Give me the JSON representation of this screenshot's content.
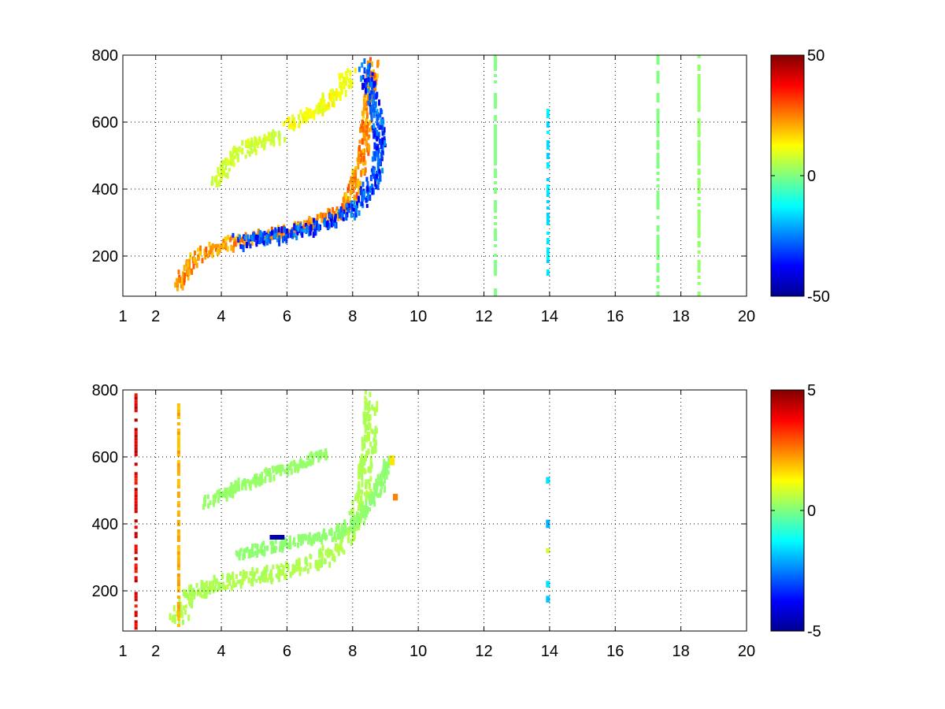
{
  "chart_data": [
    {
      "type": "heatmap",
      "title": "",
      "xlabel": "",
      "ylabel": "",
      "xlim": [
        1,
        20
      ],
      "ylim": [
        80,
        800
      ],
      "x_ticks": [
        1,
        2,
        4,
        6,
        8,
        10,
        12,
        14,
        16,
        18,
        20
      ],
      "x_tick_labels": [
        "1",
        "2",
        "4",
        "6",
        "8",
        "10",
        "12",
        "14",
        "16",
        "18",
        "20"
      ],
      "y_ticks": [
        200,
        400,
        600,
        800
      ],
      "y_tick_labels": [
        "200",
        "400",
        "600",
        "800"
      ],
      "grid": true,
      "colormap": "jet",
      "clim": [
        -50,
        50
      ],
      "colorbar_ticks": [
        50,
        0,
        -50
      ],
      "colorbar_tick_labels": [
        "50",
        "0",
        "-50"
      ],
      "features": [
        {
          "kind": "band",
          "value": 30,
          "spread": 7,
          "points": [
            [
              2.6,
              120
            ],
            [
              3.0,
              180
            ],
            [
              3.3,
              210
            ],
            [
              4.0,
              240
            ],
            [
              5.0,
              265
            ],
            [
              6.0,
              285
            ],
            [
              7.0,
              310
            ],
            [
              7.6,
              340
            ],
            [
              8.0,
              400
            ],
            [
              8.3,
              520
            ],
            [
              8.5,
              700
            ],
            [
              8.6,
              790
            ]
          ]
        },
        {
          "kind": "band",
          "value": -40,
          "spread": 8,
          "points": [
            [
              4.5,
              250
            ],
            [
              5.5,
              265
            ],
            [
              6.5,
              285
            ],
            [
              7.5,
              320
            ],
            [
              8.2,
              360
            ],
            [
              8.7,
              450
            ],
            [
              8.8,
              560
            ],
            [
              8.6,
              680
            ],
            [
              8.3,
              780
            ]
          ]
        },
        {
          "kind": "band",
          "value": 10,
          "spread": 8,
          "points": [
            [
              3.8,
              420
            ],
            [
              4.3,
              510
            ],
            [
              5.0,
              540
            ],
            [
              5.8,
              570
            ]
          ]
        },
        {
          "kind": "band",
          "value": 15,
          "spread": 8,
          "points": [
            [
              6.0,
              600
            ],
            [
              6.8,
              640
            ],
            [
              7.5,
              690
            ],
            [
              7.9,
              760
            ]
          ]
        },
        {
          "kind": "column",
          "x": 13.95,
          "y0": 150,
          "y1": 640,
          "value": -15
        },
        {
          "kind": "column",
          "x": 12.35,
          "y0": 80,
          "y1": 800,
          "value": 0
        },
        {
          "kind": "column",
          "x": 17.3,
          "y0": 80,
          "y1": 800,
          "value": 0
        },
        {
          "kind": "column",
          "x": 18.55,
          "y0": 80,
          "y1": 800,
          "value": 2
        }
      ]
    },
    {
      "type": "heatmap",
      "title": "",
      "xlabel": "",
      "ylabel": "",
      "xlim": [
        1,
        20
      ],
      "ylim": [
        80,
        800
      ],
      "x_ticks": [
        1,
        2,
        4,
        6,
        8,
        10,
        12,
        14,
        16,
        18,
        20
      ],
      "x_tick_labels": [
        "1",
        "2",
        "4",
        "6",
        "8",
        "10",
        "12",
        "14",
        "16",
        "18",
        "20"
      ],
      "y_ticks": [
        200,
        400,
        600,
        800
      ],
      "y_tick_labels": [
        "200",
        "400",
        "600",
        "800"
      ],
      "grid": true,
      "colormap": "jet",
      "clim": [
        -5,
        5
      ],
      "colorbar_ticks": [
        5,
        0,
        -5
      ],
      "colorbar_tick_labels": [
        "5",
        "0",
        "-5"
      ],
      "features": [
        {
          "kind": "band",
          "value": 0.6,
          "spread": 9,
          "points": [
            [
              2.6,
              120
            ],
            [
              3.0,
              190
            ],
            [
              3.3,
              210
            ],
            [
              4.0,
              230
            ],
            [
              5.0,
              255
            ],
            [
              6.0,
              270
            ],
            [
              7.0,
              300
            ],
            [
              7.6,
              340
            ],
            [
              8.0,
              400
            ],
            [
              8.3,
              520
            ],
            [
              8.5,
              680
            ],
            [
              8.5,
              790
            ]
          ]
        },
        {
          "kind": "band",
          "value": 0.3,
          "spread": 6,
          "points": [
            [
              3.5,
              470
            ],
            [
              4.5,
              520
            ],
            [
              5.5,
              560
            ],
            [
              6.5,
              590
            ],
            [
              7.2,
              620
            ]
          ]
        },
        {
          "kind": "band",
          "value": 0.2,
          "spread": 6,
          "points": [
            [
              4.5,
              320
            ],
            [
              5.5,
              340
            ],
            [
              6.5,
              360
            ],
            [
              7.5,
              380
            ],
            [
              8.2,
              420
            ],
            [
              8.8,
              520
            ],
            [
              9.0,
              600
            ]
          ]
        },
        {
          "kind": "spot",
          "x": 5.7,
          "y": 360,
          "w": 0.45,
          "h": 14,
          "value": -4.5
        },
        {
          "kind": "spot",
          "x": 9.3,
          "y": 480,
          "w": 0.15,
          "h": 20,
          "value": 2.5
        },
        {
          "kind": "spot",
          "x": 9.2,
          "y": 590,
          "w": 0.15,
          "h": 30,
          "value": 1.5
        },
        {
          "kind": "column",
          "x": 1.4,
          "y0": 90,
          "y1": 790,
          "value": 4.0
        },
        {
          "kind": "column",
          "x": 2.7,
          "y0": 100,
          "y1": 760,
          "value": 2.0
        },
        {
          "kind": "spot",
          "x": 13.95,
          "y": 530,
          "w": 0.12,
          "h": 20,
          "value": -1.5
        },
        {
          "kind": "spot",
          "x": 13.95,
          "y": 400,
          "w": 0.12,
          "h": 25,
          "value": -2.0
        },
        {
          "kind": "spot",
          "x": 13.95,
          "y": 220,
          "w": 0.12,
          "h": 20,
          "value": -1.5
        },
        {
          "kind": "spot",
          "x": 13.95,
          "y": 175,
          "w": 0.12,
          "h": 20,
          "value": -1.8
        },
        {
          "kind": "spot",
          "x": 13.95,
          "y": 320,
          "w": 0.12,
          "h": 15,
          "value": 0.8
        }
      ]
    }
  ]
}
